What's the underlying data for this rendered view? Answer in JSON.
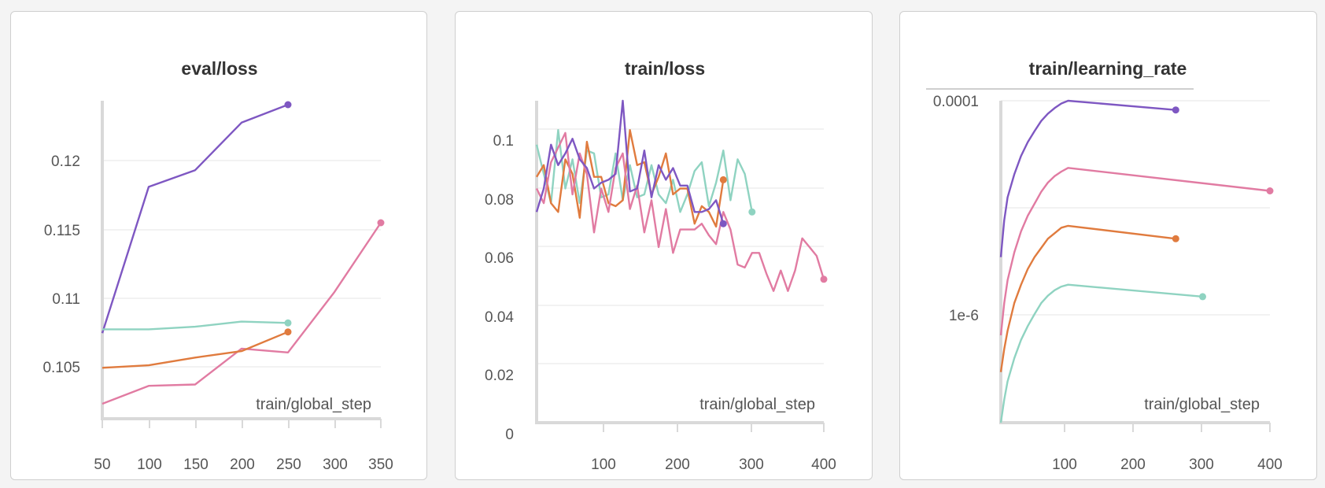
{
  "chart_data": [
    {
      "id": "eval",
      "type": "line",
      "title": "eval/loss",
      "xlabel": "train/global_step",
      "xlim": [
        50,
        350
      ],
      "ylim": [
        0.101,
        0.1243
      ],
      "xticks": [
        "50",
        "100",
        "150",
        "200",
        "250",
        "300",
        "350"
      ],
      "yticks": [
        "0.105",
        "0.11",
        "0.115",
        "0.12"
      ],
      "series": [
        {
          "color": "#7e57c2",
          "x": [
            50,
            100,
            150,
            200,
            250
          ],
          "y": [
            0.1065,
            0.1179,
            0.1192,
            0.1229,
            0.1243
          ]
        },
        {
          "color": "#e17ba2",
          "x": [
            50,
            100,
            150,
            200,
            250,
            300,
            350
          ],
          "y": [
            0.101,
            0.1024,
            0.1025,
            0.1053,
            0.105,
            0.1097,
            0.1151
          ]
        },
        {
          "color": "#8fd3c1",
          "x": [
            50,
            100,
            150,
            200,
            250
          ],
          "y": [
            0.1068,
            0.1068,
            0.107,
            0.1074,
            0.1073
          ]
        },
        {
          "color": "#e07b3e",
          "x": [
            50,
            100,
            150,
            200,
            250
          ],
          "y": [
            0.1038,
            0.104,
            0.1046,
            0.1051,
            0.1066
          ]
        }
      ]
    },
    {
      "id": "train",
      "type": "line",
      "title": "train/loss",
      "xlabel": "train/global_step",
      "xlim": [
        0,
        400
      ],
      "ylim": [
        0,
        0.11
      ],
      "xticks": [
        "100",
        "200",
        "300",
        "400"
      ],
      "yticks": [
        "0",
        "0.02",
        "0.04",
        "0.06",
        "0.08",
        "0.1"
      ],
      "series": [
        {
          "color": "#8fd3c1",
          "x": [
            0,
            10,
            20,
            30,
            40,
            50,
            60,
            70,
            80,
            90,
            100,
            110,
            120,
            130,
            140,
            150,
            160,
            170,
            180,
            190,
            200,
            210,
            220,
            230,
            240,
            250,
            260,
            270,
            280,
            290,
            300
          ],
          "y": [
            0.095,
            0.085,
            0.075,
            0.1,
            0.08,
            0.09,
            0.075,
            0.093,
            0.092,
            0.077,
            0.078,
            0.092,
            0.076,
            0.088,
            0.077,
            0.078,
            0.088,
            0.078,
            0.075,
            0.083,
            0.072,
            0.078,
            0.086,
            0.089,
            0.074,
            0.082,
            0.093,
            0.076,
            0.09,
            0.085,
            0.072
          ]
        },
        {
          "color": "#e07b3e",
          "x": [
            0,
            10,
            20,
            30,
            40,
            50,
            60,
            70,
            80,
            90,
            100,
            110,
            120,
            130,
            140,
            150,
            160,
            170,
            180,
            190,
            200,
            210,
            220,
            230,
            240,
            250,
            260
          ],
          "y": [
            0.084,
            0.088,
            0.075,
            0.072,
            0.09,
            0.085,
            0.07,
            0.096,
            0.084,
            0.084,
            0.075,
            0.074,
            0.076,
            0.1,
            0.088,
            0.089,
            0.078,
            0.084,
            0.092,
            0.078,
            0.08,
            0.08,
            0.068,
            0.074,
            0.072,
            0.067,
            0.083
          ]
        },
        {
          "color": "#e17ba2",
          "x": [
            0,
            10,
            20,
            30,
            40,
            50,
            60,
            70,
            80,
            90,
            100,
            110,
            120,
            130,
            140,
            150,
            160,
            170,
            180,
            190,
            200,
            210,
            220,
            230,
            240,
            250,
            260,
            270,
            280,
            290,
            300,
            310,
            320,
            330,
            340,
            350,
            360,
            370,
            380,
            390,
            400
          ],
          "y": [
            0.08,
            0.075,
            0.089,
            0.094,
            0.099,
            0.078,
            0.092,
            0.085,
            0.065,
            0.08,
            0.072,
            0.087,
            0.092,
            0.073,
            0.081,
            0.065,
            0.076,
            0.06,
            0.073,
            0.058,
            0.066,
            0.066,
            0.066,
            0.068,
            0.064,
            0.061,
            0.072,
            0.066,
            0.054,
            0.053,
            0.058,
            0.058,
            0.051,
            0.045,
            0.052,
            0.045,
            0.052,
            0.063,
            0.06,
            0.057,
            0.049
          ]
        },
        {
          "color": "#7e57c2",
          "x": [
            0,
            10,
            20,
            30,
            40,
            50,
            60,
            70,
            80,
            90,
            100,
            110,
            120,
            130,
            140,
            150,
            160,
            170,
            180,
            190,
            200,
            210,
            220,
            230,
            240,
            250,
            260
          ],
          "y": [
            0.072,
            0.08,
            0.095,
            0.088,
            0.092,
            0.097,
            0.09,
            0.087,
            0.08,
            0.082,
            0.083,
            0.085,
            0.11,
            0.079,
            0.08,
            0.093,
            0.077,
            0.088,
            0.083,
            0.087,
            0.081,
            0.081,
            0.072,
            0.072,
            0.073,
            0.076,
            0.068
          ]
        }
      ]
    },
    {
      "id": "lr",
      "type": "line",
      "title": "train/learning_rate",
      "xlabel": "train/global_step",
      "xscale": "linear",
      "yscale": "log",
      "xlim": [
        0,
        400
      ],
      "ylim_log10": [
        -7.5,
        -4
      ],
      "xticks": [
        "100",
        "200",
        "300",
        "400"
      ],
      "yticks": [
        "0.0001",
        "1e-6"
      ],
      "series": [
        {
          "color": "#7e57c2",
          "x": [
            0,
            5,
            10,
            20,
            30,
            40,
            50,
            60,
            70,
            80,
            90,
            100,
            260
          ],
          "y": [
            -5.7,
            -5.3,
            -5.05,
            -4.8,
            -4.6,
            -4.45,
            -4.33,
            -4.22,
            -4.14,
            -4.08,
            -4.03,
            -4.0,
            -4.1
          ]
        },
        {
          "color": "#e17ba2",
          "x": [
            0,
            5,
            10,
            20,
            30,
            40,
            50,
            60,
            70,
            80,
            90,
            100,
            400
          ],
          "y": [
            -6.55,
            -6.2,
            -5.95,
            -5.65,
            -5.42,
            -5.25,
            -5.12,
            -4.99,
            -4.89,
            -4.82,
            -4.77,
            -4.73,
            -4.98
          ]
        },
        {
          "color": "#e07b3e",
          "x": [
            0,
            5,
            10,
            20,
            30,
            40,
            50,
            60,
            70,
            80,
            90,
            100,
            260
          ],
          "y": [
            -6.95,
            -6.7,
            -6.5,
            -6.2,
            -6.0,
            -5.83,
            -5.7,
            -5.6,
            -5.5,
            -5.44,
            -5.38,
            -5.36,
            -5.5
          ]
        },
        {
          "color": "#8fd3c1",
          "x": [
            0,
            5,
            10,
            20,
            30,
            40,
            50,
            60,
            70,
            80,
            90,
            100,
            300
          ],
          "y": [
            -7.5,
            -7.25,
            -7.05,
            -6.8,
            -6.6,
            -6.45,
            -6.32,
            -6.2,
            -6.12,
            -6.06,
            -6.02,
            -6.0,
            -6.13
          ]
        }
      ]
    }
  ]
}
